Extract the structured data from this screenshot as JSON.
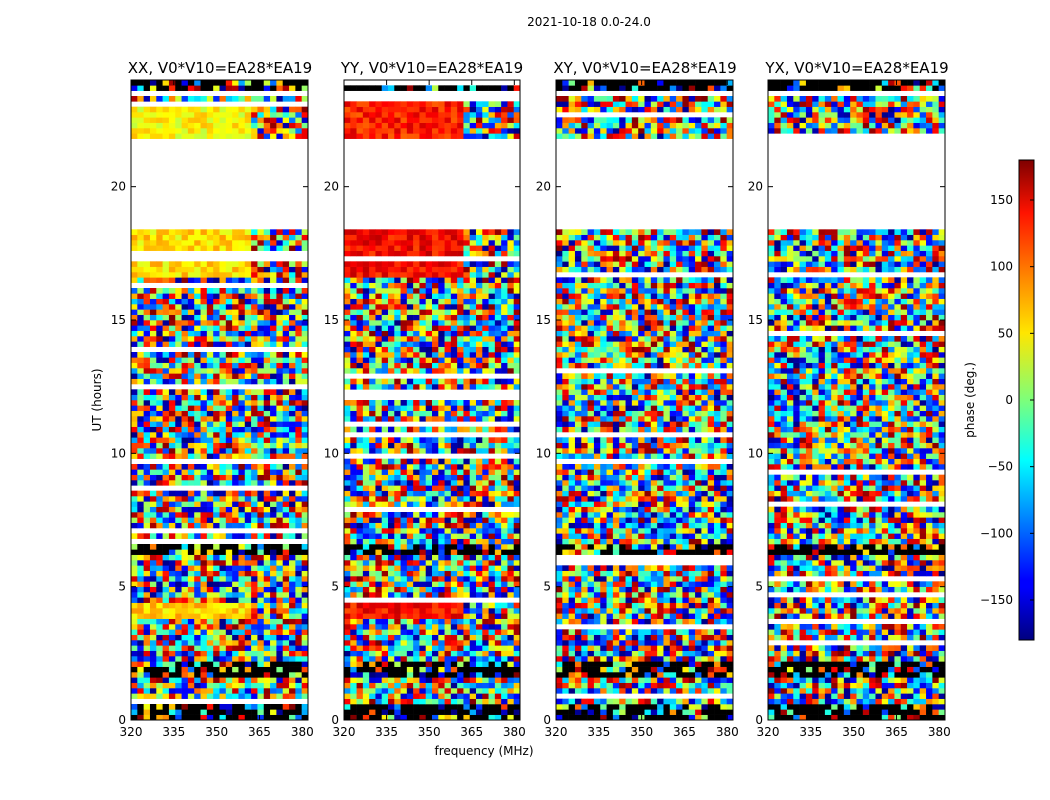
{
  "figure": {
    "suptitle": "2021-10-18 0.0-24.0",
    "xlabel": "frequency (MHz)",
    "ylabel": "UT (hours)"
  },
  "colorbar": {
    "label": "phase (deg.)",
    "range": [
      -180,
      180
    ],
    "ticks": [
      150,
      100,
      50,
      0,
      -50,
      -100,
      -150
    ],
    "tick_labels": [
      "150",
      "100",
      "50",
      "0",
      "−50",
      "−100",
      "−150"
    ],
    "colormap": "jet"
  },
  "chart_data": {
    "type": "heatmap",
    "x": {
      "label": "frequency (MHz)",
      "range": [
        320,
        382
      ],
      "ticks": [
        320,
        335,
        350,
        365,
        380
      ]
    },
    "y": {
      "label": "UT (hours)",
      "range": [
        0,
        24
      ],
      "ticks": [
        0,
        5,
        10,
        15,
        20
      ]
    },
    "value": {
      "label": "phase (deg.)",
      "range": [
        -180,
        180
      ]
    },
    "panels": [
      {
        "title": "XX, V0*V10=EA28*EA19",
        "phase_coherent_bands": [
          {
            "ut": [
              3.9,
              4.4
            ],
            "phase_deg": 60
          },
          {
            "ut": [
              16.6,
              18.5
            ],
            "phase_deg": 55
          },
          {
            "ut": [
              21.8,
              23.1
            ],
            "phase_deg": 45
          }
        ]
      },
      {
        "title": "YY, V0*V10=EA28*EA19",
        "phase_coherent_bands": [
          {
            "ut": [
              3.9,
              4.4
            ],
            "phase_deg": 130
          },
          {
            "ut": [
              16.6,
              18.5
            ],
            "phase_deg": 135
          },
          {
            "ut": [
              21.8,
              23.1
            ],
            "phase_deg": 125
          }
        ]
      },
      {
        "title": "XY, V0*V10=EA28*EA19",
        "phase_coherent_bands": []
      },
      {
        "title": "YX, V0*V10=EA28*EA19",
        "phase_coherent_bands": []
      }
    ],
    "flagged_ut_ranges": [
      [
        18.5,
        21.7
      ],
      [
        23.4,
        23.6
      ]
    ],
    "dense_ut_ranges": [
      [
        0.0,
        0.6
      ],
      [
        1.6,
        2.3
      ],
      [
        6.2,
        6.6
      ],
      [
        23.5,
        24.0
      ]
    ]
  }
}
